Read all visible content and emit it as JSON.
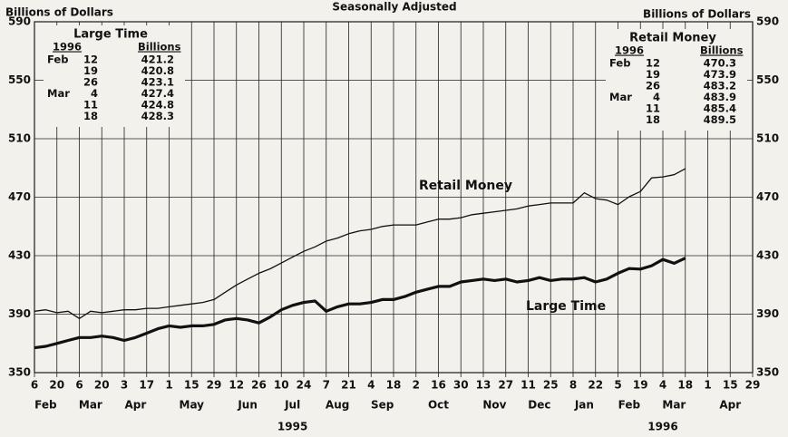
{
  "chart_data": {
    "type": "line",
    "title": "Seasonally Adjusted",
    "ylabel_left": "Billions of Dollars",
    "ylabel_right": "Billions of Dollars",
    "ylim": [
      350,
      590
    ],
    "yticks": [
      350,
      390,
      430,
      470,
      510,
      550,
      590
    ],
    "grid": true,
    "xlim": [
      "1995-02-06",
      "1996-04-29"
    ],
    "xticks": [
      {
        "value": "1995-02-06",
        "label": "6"
      },
      {
        "value": "1995-02-20",
        "label": "20"
      },
      {
        "value": "1995-03-06",
        "label": "6"
      },
      {
        "value": "1995-03-20",
        "label": "20"
      },
      {
        "value": "1995-04-03",
        "label": "3"
      },
      {
        "value": "1995-04-17",
        "label": "17"
      },
      {
        "value": "1995-05-01",
        "label": "1"
      },
      {
        "value": "1995-05-15",
        "label": "15"
      },
      {
        "value": "1995-05-29",
        "label": "29"
      },
      {
        "value": "1995-06-12",
        "label": "12"
      },
      {
        "value": "1995-06-26",
        "label": "26"
      },
      {
        "value": "1995-07-10",
        "label": "10"
      },
      {
        "value": "1995-07-24",
        "label": "24"
      },
      {
        "value": "1995-08-07",
        "label": "7"
      },
      {
        "value": "1995-08-21",
        "label": "21"
      },
      {
        "value": "1995-09-04",
        "label": "4"
      },
      {
        "value": "1995-09-18",
        "label": "18"
      },
      {
        "value": "1995-10-02",
        "label": "2"
      },
      {
        "value": "1995-10-16",
        "label": "16"
      },
      {
        "value": "1995-10-30",
        "label": "30"
      },
      {
        "value": "1995-11-13",
        "label": "13"
      },
      {
        "value": "1995-11-27",
        "label": "27"
      },
      {
        "value": "1995-12-11",
        "label": "11"
      },
      {
        "value": "1995-12-25",
        "label": "25"
      },
      {
        "value": "1996-01-08",
        "label": "8"
      },
      {
        "value": "1996-01-22",
        "label": "22"
      },
      {
        "value": "1996-02-05",
        "label": "5"
      },
      {
        "value": "1996-02-19",
        "label": "19"
      },
      {
        "value": "1996-03-04",
        "label": "4"
      },
      {
        "value": "1996-03-18",
        "label": "18"
      },
      {
        "value": "1996-04-01",
        "label": "1"
      },
      {
        "value": "1996-04-15",
        "label": "15"
      },
      {
        "value": "1996-04-29",
        "label": "29"
      }
    ],
    "month_labels": [
      "Feb",
      "Mar",
      "Apr",
      "May",
      "Jun",
      "Jul",
      "Aug",
      "Sep",
      "Oct",
      "Nov",
      "Dec",
      "Jan",
      "Feb",
      "Mar",
      "Apr"
    ],
    "year_labels": [
      "1995",
      "1996"
    ],
    "x": [
      "1995-02-06",
      "1995-02-13",
      "1995-02-20",
      "1995-02-27",
      "1995-03-06",
      "1995-03-13",
      "1995-03-20",
      "1995-03-27",
      "1995-04-03",
      "1995-04-10",
      "1995-04-17",
      "1995-04-24",
      "1995-05-01",
      "1995-05-08",
      "1995-05-15",
      "1995-05-22",
      "1995-05-29",
      "1995-06-05",
      "1995-06-12",
      "1995-06-19",
      "1995-06-26",
      "1995-07-03",
      "1995-07-10",
      "1995-07-17",
      "1995-07-24",
      "1995-07-31",
      "1995-08-07",
      "1995-08-14",
      "1995-08-21",
      "1995-08-28",
      "1995-09-04",
      "1995-09-11",
      "1995-09-18",
      "1995-09-25",
      "1995-10-02",
      "1995-10-09",
      "1995-10-16",
      "1995-10-23",
      "1995-10-30",
      "1995-11-06",
      "1995-11-13",
      "1995-11-20",
      "1995-11-27",
      "1995-12-04",
      "1995-12-11",
      "1995-12-18",
      "1995-12-25",
      "1996-01-01",
      "1996-01-08",
      "1996-01-15",
      "1996-01-22",
      "1996-01-29",
      "1996-02-05",
      "1996-02-12",
      "1996-02-19",
      "1996-02-26",
      "1996-03-04",
      "1996-03-11",
      "1996-03-18"
    ],
    "series": [
      {
        "name": "Retail Money",
        "color": "#111111",
        "width": 1.3,
        "values": [
          392,
          393,
          391,
          392,
          387,
          392,
          391,
          392,
          393,
          393,
          394,
          394,
          395,
          396,
          397,
          398,
          400,
          405,
          410,
          414,
          418,
          421,
          425,
          429,
          433,
          436,
          440,
          442,
          445,
          447,
          448,
          450,
          451,
          451,
          451,
          453,
          455,
          455,
          456,
          458,
          459,
          460,
          461,
          462,
          464,
          465,
          466,
          466,
          466,
          473,
          469,
          468,
          465,
          470.3,
          473.9,
          483.2,
          483.9,
          485.4,
          489.5
        ]
      },
      {
        "name": "Large Time",
        "color": "#111111",
        "width": 3.2,
        "values": [
          367,
          368,
          370,
          372,
          374,
          374,
          375,
          374,
          372,
          374,
          377,
          380,
          382,
          381,
          382,
          382,
          383,
          386,
          387,
          386,
          384,
          388,
          393,
          396,
          398,
          399,
          392,
          395,
          397,
          397,
          398,
          400,
          400,
          402,
          405,
          407,
          409,
          409,
          412,
          413,
          414,
          413,
          414,
          412,
          413,
          415,
          413,
          414,
          414,
          415,
          412,
          414,
          418,
          421.2,
          420.8,
          423.1,
          427.4,
          424.8,
          428.3
        ]
      }
    ],
    "insets": [
      {
        "title": "Large Time",
        "headers": [
          "1996",
          "Billions"
        ],
        "rows": [
          [
            "Feb",
            "12",
            "421.2"
          ],
          [
            "",
            "19",
            "420.8"
          ],
          [
            "",
            "26",
            "423.1"
          ],
          [
            "Mar",
            "4",
            "427.4"
          ],
          [
            "",
            "11",
            "424.8"
          ],
          [
            "",
            "18",
            "428.3"
          ]
        ]
      },
      {
        "title": "Retail Money",
        "headers": [
          "1996",
          "Billions"
        ],
        "rows": [
          [
            "Feb",
            "12",
            "470.3"
          ],
          [
            "",
            "19",
            "473.9"
          ],
          [
            "",
            "26",
            "483.2"
          ],
          [
            "Mar",
            "4",
            "483.9"
          ],
          [
            "",
            "11",
            "485.4"
          ],
          [
            "",
            "18",
            "489.5"
          ]
        ]
      }
    ]
  }
}
